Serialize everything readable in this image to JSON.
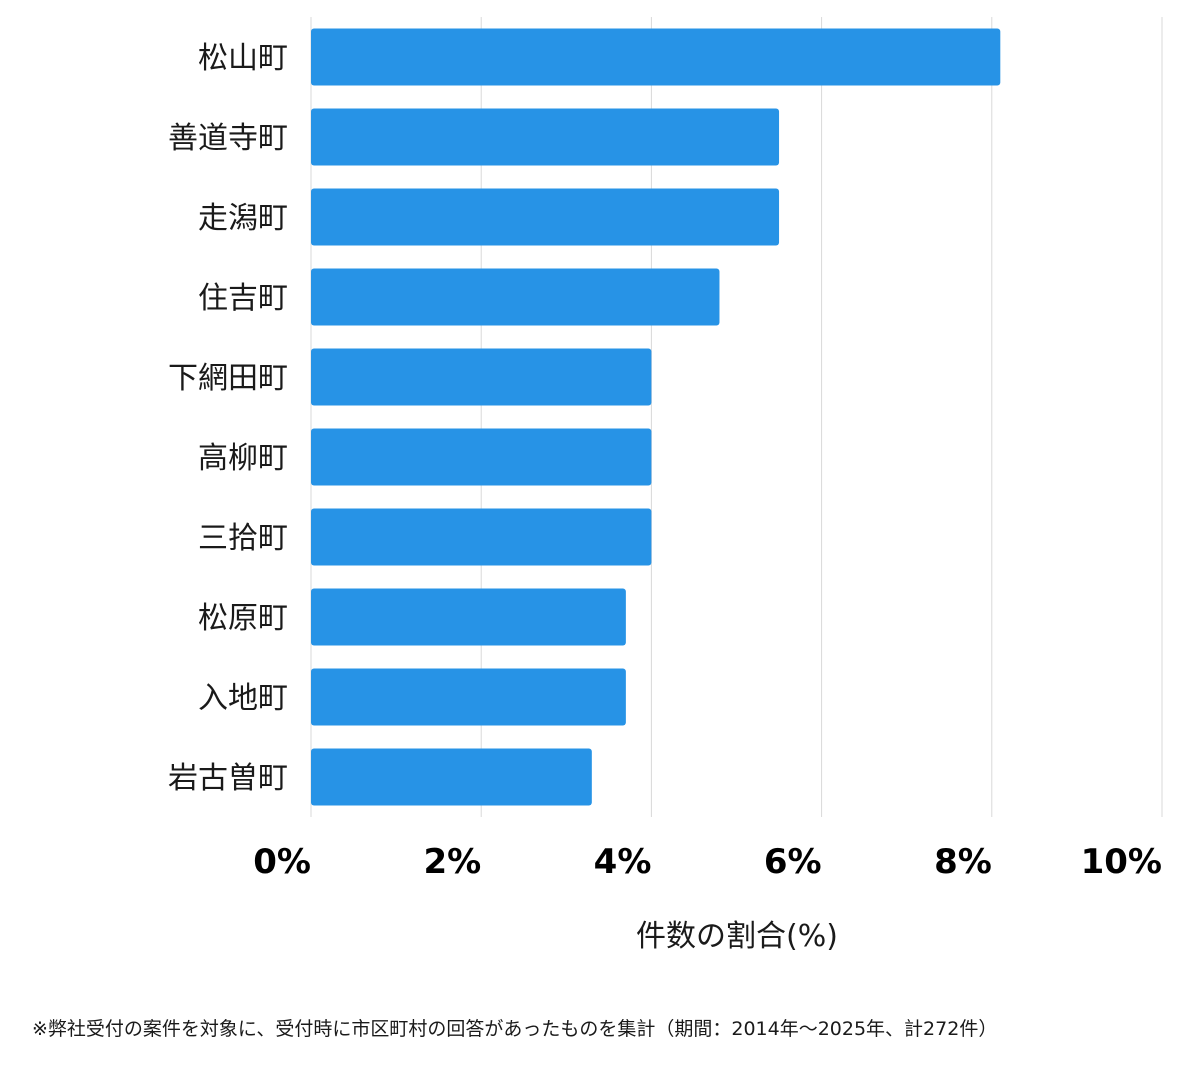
{
  "chart_data": {
    "type": "bar",
    "orientation": "horizontal",
    "categories": [
      "松山町",
      "善道寺町",
      "走潟町",
      "住吉町",
      "下網田町",
      "高柳町",
      "三拾町",
      "松原町",
      "入地町",
      "岩古曽町"
    ],
    "values": [
      8.1,
      5.5,
      5.5,
      4.8,
      4.0,
      4.0,
      4.0,
      3.7,
      3.7,
      3.3
    ],
    "xlim": [
      0,
      10
    ],
    "xticks": [
      0,
      2,
      4,
      6,
      8,
      10
    ],
    "xtick_labels": [
      "0%",
      "2%",
      "4%",
      "6%",
      "8%",
      "10%"
    ],
    "xlabel": "件数の割合(%)",
    "title": "",
    "grid": true,
    "bar_color": "#2793e6",
    "grid_color": "#d9d9d9"
  },
  "footnote": "※弊社受付の案件を対象に、受付時に市区町村の回答があったものを集計（期間：2014年～2025年、計272件）"
}
